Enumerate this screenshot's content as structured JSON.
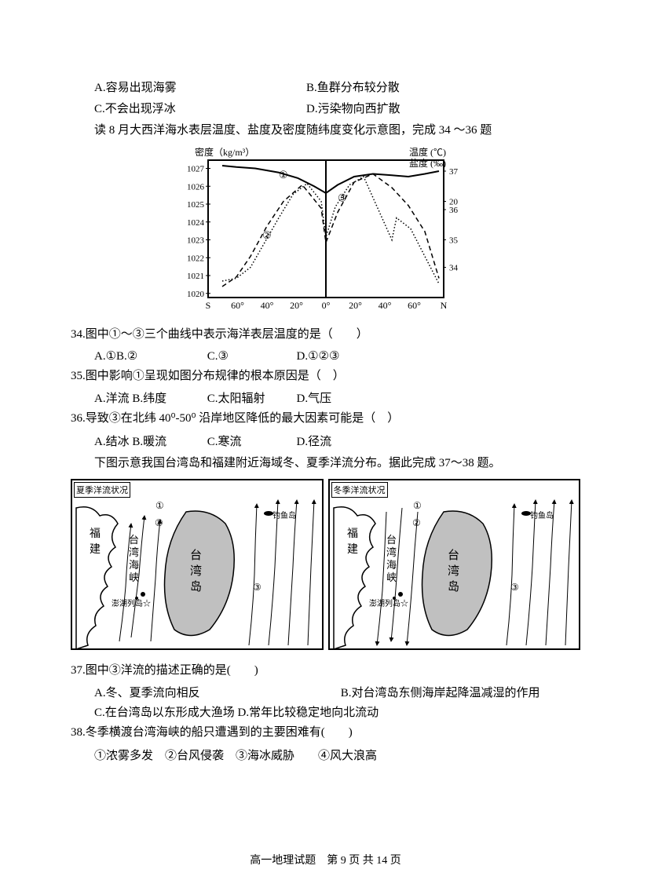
{
  "opts_prev": {
    "a": "A.容易出现海雾",
    "b": "B.鱼群分布较分散",
    "c": "C.不会出现浮冰",
    "d": "D.污染物向西扩散"
  },
  "intro1": "读 8 月大西洋海水表层温度、盐度及密度随纬度变化示意图，完成 34 ～36 题",
  "chart": {
    "label_left": "密度（kg/m³）",
    "label_right_top": "温度 (℃)",
    "label_right_bot": "盐度 (‰)",
    "y_left_ticks": [
      "1027",
      "1026",
      "1025",
      "1024",
      "1023",
      "1022",
      "1021",
      "1020"
    ],
    "y_left_positions": [
      0.06,
      0.19,
      0.32,
      0.45,
      0.58,
      0.71,
      0.84,
      0.97
    ],
    "y_right_t_ticks": [
      "20"
    ],
    "y_right_t_positions": [
      0.3
    ],
    "y_right_s_ticks": [
      "37",
      "36",
      "35",
      "34"
    ],
    "y_right_s_positions": [
      0.08,
      0.36,
      0.58,
      0.78
    ],
    "x_ticks": [
      "S",
      "60°",
      "40°",
      "20°",
      "0°",
      "20°",
      "40°",
      "60°",
      "N"
    ],
    "circ_labels": [
      "①",
      "②",
      "③"
    ],
    "circ_pos": [
      [
        0.3,
        0.13
      ],
      [
        0.23,
        0.57
      ],
      [
        0.55,
        0.3
      ]
    ],
    "series": {
      "temp_solid": [
        [
          0.06,
          0.04
        ],
        [
          0.12,
          0.05
        ],
        [
          0.2,
          0.06
        ],
        [
          0.3,
          0.09
        ],
        [
          0.38,
          0.13
        ],
        [
          0.45,
          0.19
        ],
        [
          0.5,
          0.24
        ],
        [
          0.55,
          0.18
        ],
        [
          0.62,
          0.12
        ],
        [
          0.7,
          0.1
        ],
        [
          0.78,
          0.11
        ],
        [
          0.85,
          0.12
        ],
        [
          0.92,
          0.1
        ],
        [
          0.98,
          0.08
        ]
      ],
      "density_dash": [
        [
          0.06,
          0.92
        ],
        [
          0.12,
          0.85
        ],
        [
          0.18,
          0.7
        ],
        [
          0.25,
          0.48
        ],
        [
          0.32,
          0.3
        ],
        [
          0.4,
          0.18
        ],
        [
          0.48,
          0.35
        ],
        [
          0.5,
          0.6
        ],
        [
          0.55,
          0.38
        ],
        [
          0.62,
          0.16
        ],
        [
          0.7,
          0.1
        ],
        [
          0.78,
          0.2
        ],
        [
          0.85,
          0.33
        ],
        [
          0.92,
          0.52
        ],
        [
          0.98,
          0.86
        ]
      ],
      "salinity_dot": [
        [
          0.06,
          0.88
        ],
        [
          0.12,
          0.86
        ],
        [
          0.18,
          0.78
        ],
        [
          0.24,
          0.6
        ],
        [
          0.3,
          0.42
        ],
        [
          0.36,
          0.25
        ],
        [
          0.42,
          0.17
        ],
        [
          0.48,
          0.3
        ],
        [
          0.5,
          0.56
        ],
        [
          0.54,
          0.34
        ],
        [
          0.6,
          0.18
        ],
        [
          0.66,
          0.12
        ],
        [
          0.72,
          0.35
        ],
        [
          0.78,
          0.58
        ],
        [
          0.8,
          0.42
        ],
        [
          0.86,
          0.5
        ],
        [
          0.92,
          0.7
        ],
        [
          0.98,
          0.9
        ]
      ]
    }
  },
  "q34": {
    "stem": "34.图中①～③三个曲线中表示海洋表层温度的是（　　）",
    "a": "A.①B.②",
    "c": "C.③",
    "d": "D.①②③"
  },
  "q35": {
    "stem": "35.图中影响①呈现如图分布规律的根本原因是（　）",
    "a": "A.洋流 B.纬度",
    "c": "C.太阳辐射",
    "d": "D.气压"
  },
  "q36": {
    "stem": "36.导致③在北纬 40⁰-50⁰ 沿岸地区降低的最大因素可能是（　）",
    "a": "A.结冰 B.暖流",
    "c": "C.寒流",
    "d": "D.径流"
  },
  "intro2": "下图示意我国台湾岛和福建附近海域冬、夏季洋流分布。据此完成 37～38 题。",
  "maps": {
    "left_title": "夏季洋流状况",
    "right_title": "冬季洋流状况",
    "labels_left": {
      "fujian": "福建",
      "strait": "台湾海峡",
      "taiwan": "台湾岛",
      "penghu": "澎湖列岛",
      "diaoyu": "钓鱼岛"
    },
    "labels_right": {
      "fujian": "福建",
      "strait": "台湾海峡",
      "taiwan": "台湾岛",
      "penghu": "澎湖列岛",
      "diaoyu": "钓鱼岛"
    },
    "num_labels": [
      "①",
      "②",
      "③"
    ]
  },
  "q37": {
    "stem": "37.图中③洋流的描述正确的是(　　)",
    "a": "A.冬、夏季流向相反",
    "b": "B.对台湾岛东侧海岸起降温减湿的作用",
    "c": "C.在台湾岛以东形成大渔场 D.常年比较稳定地向北流动"
  },
  "q38": {
    "stem": "38.冬季横渡台湾海峡的船只遭遇到的主要困难有(　　)",
    "opts": "①浓雾多发　②台风侵袭　③海冰威胁　　④风大浪高"
  },
  "footer": {
    "text": "高一地理试题　第 9 页 共 14 页",
    "page": "9",
    "total": "14"
  }
}
